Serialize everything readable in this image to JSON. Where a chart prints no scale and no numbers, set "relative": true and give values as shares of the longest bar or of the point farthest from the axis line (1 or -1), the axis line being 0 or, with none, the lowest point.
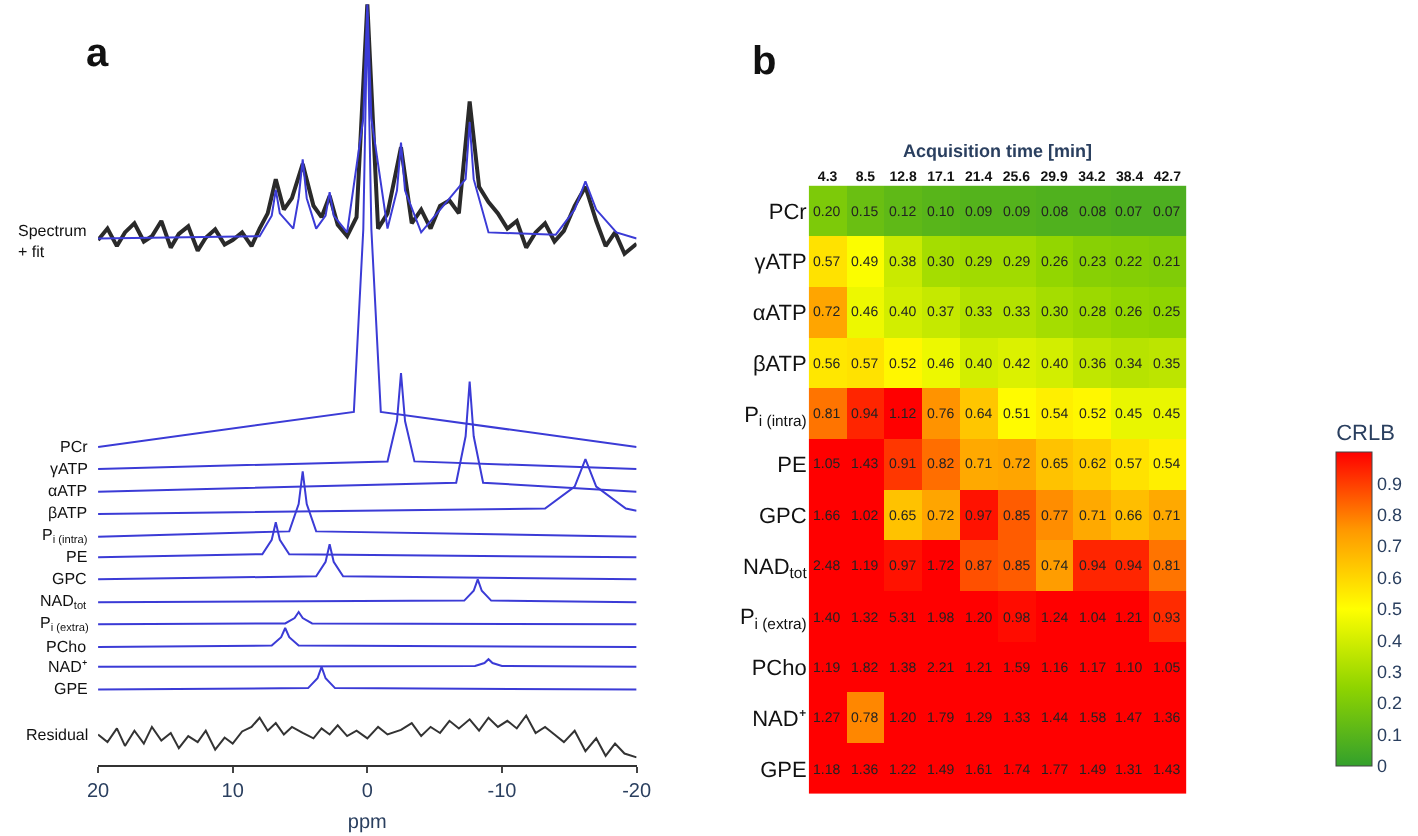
{
  "chart_data": [
    {
      "type": "line",
      "title": "a",
      "xlabel": "ppm",
      "xlim": [
        20,
        -20
      ],
      "xticks": [
        20,
        10,
        0,
        -10,
        -20
      ],
      "relative": true,
      "tick_labels": "x",
      "series": [
        {
          "name": "Spectrum + fit",
          "color": "#2a2a2a",
          "x": [
            20,
            19.3,
            18.6,
            18,
            17.3,
            16.6,
            16,
            15.3,
            14.6,
            14,
            13.3,
            12.6,
            12,
            11.3,
            10.6,
            10,
            9.3,
            8.6,
            8,
            7.4,
            6.8,
            6.2,
            5.6,
            4.8,
            4,
            3.4,
            2.8,
            2.2,
            1.5,
            0.8,
            0,
            -0.8,
            -1.5,
            -2.5,
            -3.3,
            -4,
            -4.7,
            -5.4,
            -6.1,
            -6.8,
            -7.6,
            -8.3,
            -9,
            -9.7,
            -10.4,
            -11.1,
            -11.8,
            -12.5,
            -13.2,
            -13.9,
            -14.6,
            -15.4,
            -16.2,
            -17,
            -17.7,
            -18.4,
            -19.1,
            -20
          ],
          "values": [
            0.69,
            0.705,
            0.682,
            0.7,
            0.712,
            0.688,
            0.695,
            0.715,
            0.68,
            0.698,
            0.708,
            0.676,
            0.693,
            0.704,
            0.684,
            0.69,
            0.7,
            0.682,
            0.705,
            0.725,
            0.77,
            0.73,
            0.745,
            0.79,
            0.735,
            0.72,
            0.748,
            0.71,
            0.695,
            0.72,
            1.0,
            0.705,
            0.725,
            0.812,
            0.712,
            0.73,
            0.705,
            0.735,
            0.742,
            0.725,
            0.872,
            0.76,
            0.74,
            0.725,
            0.705,
            0.715,
            0.68,
            0.7,
            0.712,
            0.688,
            0.702,
            0.735,
            0.76,
            0.715,
            0.682,
            0.7,
            0.672,
            0.685
          ]
        },
        {
          "color": "#3b3bd6",
          "x": [
            20,
            8,
            7.1,
            6.8,
            6.5,
            5.5,
            5.1,
            4.8,
            4.5,
            3.8,
            3.1,
            2.8,
            2.5,
            1.5,
            0.3,
            0,
            -0.3,
            -1.5,
            -2.2,
            -2.5,
            -2.8,
            -4,
            -7.3,
            -7.6,
            -7.9,
            -9,
            -14,
            -15.4,
            -16.2,
            -17,
            -18.5,
            -20
          ],
          "values": [
            0.692,
            0.695,
            0.722,
            0.756,
            0.725,
            0.705,
            0.745,
            0.796,
            0.745,
            0.705,
            0.722,
            0.753,
            0.722,
            0.7,
            0.85,
            1.0,
            0.85,
            0.705,
            0.755,
            0.818,
            0.755,
            0.7,
            0.77,
            0.845,
            0.77,
            0.7,
            0.697,
            0.73,
            0.767,
            0.73,
            0.7,
            0.692
          ]
        },
        {
          "name": "PCr",
          "color": "#3b3bd6",
          "x": [
            20,
            1,
            0.3,
            0,
            -0.3,
            -1,
            -20
          ],
          "values": [
            0.418,
            0.464,
            0.704,
            0.99,
            0.704,
            0.464,
            0.418
          ]
        },
        {
          "name": "γATP",
          "color": "#3b3bd6",
          "x": [
            20,
            -1.5,
            -2.2,
            -2.5,
            -2.8,
            -3.5,
            -20
          ],
          "values": [
            0.389,
            0.399,
            0.452,
            0.515,
            0.452,
            0.399,
            0.389
          ]
        },
        {
          "name": "αATP",
          "color": "#3b3bd6",
          "x": [
            20,
            -6.6,
            -7.3,
            -7.6,
            -7.9,
            -8.6,
            -20
          ],
          "values": [
            0.359,
            0.371,
            0.432,
            0.504,
            0.432,
            0.371,
            0.359
          ]
        },
        {
          "name": "βATP",
          "color": "#3b3bd6",
          "x": [
            20,
            -13.2,
            -15.4,
            -16.2,
            -17,
            -19.2,
            -20
          ],
          "values": [
            0.33,
            0.337,
            0.366,
            0.402,
            0.366,
            0.337,
            0.334
          ]
        },
        {
          "name": "P$_{i (intra)}$",
          "color": "#3b3bd6",
          "x": [
            20,
            5.8,
            5.1,
            4.8,
            4.5,
            3.8,
            -20
          ],
          "values": [
            0.3,
            0.307,
            0.343,
            0.386,
            0.343,
            0.307,
            0.3
          ]
        },
        {
          "name": "PE",
          "color": "#3b3bd6",
          "x": [
            20,
            7.8,
            7.1,
            6.8,
            6.5,
            5.8,
            -20
          ],
          "values": [
            0.273,
            0.277,
            0.296,
            0.319,
            0.296,
            0.277,
            0.273
          ]
        },
        {
          "name": "GPC",
          "color": "#3b3bd6",
          "x": [
            20,
            3.8,
            3.1,
            2.8,
            2.5,
            1.8,
            -20
          ],
          "values": [
            0.244,
            0.248,
            0.267,
            0.29,
            0.267,
            0.248,
            0.244
          ]
        },
        {
          "name": "NAD$_{tot}$",
          "color": "#3b3bd6",
          "x": [
            20,
            -7.2,
            -7.9,
            -8.2,
            -8.5,
            -9.2,
            -20
          ],
          "values": [
            0.214,
            0.216,
            0.229,
            0.244,
            0.229,
            0.216,
            0.214
          ]
        },
        {
          "name": "P$_{i (extra)}$",
          "color": "#3b3bd6",
          "x": [
            20,
            6.1,
            5.4,
            5.1,
            4.8,
            4.1,
            -20
          ],
          "values": [
            0.185,
            0.186,
            0.193,
            0.201,
            0.193,
            0.186,
            0.185
          ]
        },
        {
          "name": "PCho",
          "color": "#3b3bd6",
          "x": [
            20,
            7.1,
            6.4,
            6.1,
            5.8,
            5.1,
            -20
          ],
          "values": [
            0.155,
            0.157,
            0.168,
            0.18,
            0.168,
            0.157,
            0.155
          ]
        },
        {
          "name": "NAD⁺",
          "color": "#3b3bd6",
          "x": [
            20,
            -8,
            -8.7,
            -9,
            -9.3,
            -10,
            -20
          ],
          "values": [
            0.129,
            0.13,
            0.134,
            0.139,
            0.134,
            0.13,
            0.129
          ]
        },
        {
          "name": "GPE",
          "color": "#3b3bd6",
          "x": [
            20,
            4.4,
            3.7,
            3.4,
            3.1,
            2.4,
            -20
          ],
          "values": [
            0.099,
            0.101,
            0.114,
            0.129,
            0.114,
            0.101,
            0.099
          ]
        },
        {
          "name": "Residual",
          "color": "#333333",
          "x": [
            20,
            19.3,
            18.6,
            18,
            17.3,
            16.6,
            16,
            15.3,
            14.6,
            14,
            13.3,
            12.6,
            12,
            11.3,
            10.6,
            10,
            9.3,
            8.6,
            8,
            7.4,
            6.8,
            6.2,
            5.6,
            4.8,
            4,
            3.4,
            2.8,
            2.2,
            1.5,
            0.8,
            0,
            -0.8,
            -1.5,
            -2.5,
            -3.3,
            -4,
            -4.7,
            -5.4,
            -6.1,
            -6.8,
            -7.6,
            -8.3,
            -9,
            -9.7,
            -10.4,
            -11.1,
            -11.8,
            -12.5,
            -13.2,
            -13.9,
            -14.6,
            -15.4,
            -16.2,
            -17,
            -17.7,
            -18.4,
            -19.1,
            -20
          ],
          "values": [
            0.04,
            0.03,
            0.048,
            0.025,
            0.045,
            0.028,
            0.05,
            0.032,
            0.042,
            0.022,
            0.038,
            0.03,
            0.045,
            0.02,
            0.036,
            0.028,
            0.044,
            0.05,
            0.062,
            0.045,
            0.055,
            0.04,
            0.05,
            0.042,
            0.035,
            0.048,
            0.04,
            0.052,
            0.038,
            0.045,
            0.035,
            0.05,
            0.04,
            0.046,
            0.055,
            0.038,
            0.05,
            0.042,
            0.058,
            0.048,
            0.06,
            0.045,
            0.062,
            0.05,
            0.058,
            0.048,
            0.065,
            0.042,
            0.05,
            0.04,
            0.03,
            0.045,
            0.018,
            0.035,
            0.012,
            0.028,
            0.015,
            0.01
          ]
        }
      ]
    },
    {
      "type": "heatmap",
      "title": "b",
      "xlabel": "Acquisition time [min]",
      "clabel": "CRLB",
      "cell_labels": [
        [
          "0.20",
          "0.15",
          "0.12",
          "0.10",
          "0.09",
          "0.09",
          "0.08",
          "0.08",
          "0.07",
          "0.07"
        ],
        [
          "0.57",
          "0.49",
          "0.38",
          "0.30",
          "0.29",
          "0.29",
          "0.26",
          "0.23",
          "0.22",
          "0.21"
        ],
        [
          "0.72",
          "0.46",
          "0.40",
          "0.37",
          "0.33",
          "0.33",
          "0.30",
          "0.28",
          "0.26",
          "0.25"
        ],
        [
          "0.56",
          "0.57",
          "0.52",
          "0.46",
          "0.40",
          "0.42",
          "0.40",
          "0.36",
          "0.34",
          "0.35"
        ],
        [
          "0.81",
          "0.94",
          "1.12",
          "0.76",
          "0.64",
          "0.51",
          "0.54",
          "0.52",
          "0.45",
          "0.45"
        ],
        [
          "1.05",
          "1.43",
          "0.91",
          "0.82",
          "0.71",
          "0.72",
          "0.65",
          "0.62",
          "0.57",
          "0.54"
        ],
        [
          "1.66",
          "1.02",
          "0.65",
          "0.72",
          "0.97",
          "0.85",
          "0.77",
          "0.71",
          "0.66",
          "0.71"
        ],
        [
          "2.48",
          "1.19",
          "0.97",
          "1.72",
          "0.87",
          "0.85",
          "0.74",
          "0.94",
          "0.94",
          "0.81"
        ],
        [
          "1.40",
          "1.32",
          "5.31",
          "1.98",
          "1.20",
          "0.98",
          "1.24",
          "1.04",
          "1.21",
          "0.93"
        ],
        [
          "1.19",
          "1.82",
          "1.38",
          "2.21",
          "1.21",
          "1.59",
          "1.16",
          "1.17",
          "1.10",
          "1.05"
        ],
        [
          "1.27",
          "0.78",
          "1.20",
          "1.79",
          "1.29",
          "1.33",
          "1.44",
          "1.58",
          "1.47",
          "1.36"
        ],
        [
          "1.18",
          "1.36",
          "1.22",
          "1.49",
          "1.61",
          "1.74",
          "1.77",
          "1.49",
          "1.31",
          "1.43"
        ]
      ],
      "categories": [
        "4.3",
        "8.5",
        "12.8",
        "17.1",
        "21.4",
        "25.6",
        "29.9",
        "34.2",
        "38.4",
        "42.7"
      ],
      "y_categories": [
        "PCr",
        "γATP",
        "αATP",
        "βATP",
        "P$_{i (intra)}$",
        "PE",
        "GPC",
        "NAD$_{tot}$",
        "P$_{i (extra)}$",
        "PCho",
        "NAD⁺",
        "GPE"
      ],
      "clim": [
        0,
        1
      ],
      "cticks": [
        0,
        0.1,
        0.2,
        0.3,
        0.4,
        0.5,
        0.6,
        0.7,
        0.8,
        0.9
      ],
      "cells": [
        [
          0.2,
          0.15,
          0.12,
          0.1,
          0.09,
          0.09,
          0.08,
          0.08,
          0.07,
          0.07
        ],
        [
          0.57,
          0.49,
          0.38,
          0.3,
          0.29,
          0.29,
          0.26,
          0.23,
          0.22,
          0.21
        ],
        [
          0.72,
          0.46,
          0.4,
          0.37,
          0.33,
          0.33,
          0.3,
          0.28,
          0.26,
          0.25
        ],
        [
          0.56,
          0.57,
          0.52,
          0.46,
          0.4,
          0.42,
          0.4,
          0.36,
          0.34,
          0.35
        ],
        [
          0.81,
          0.94,
          1.12,
          0.76,
          0.64,
          0.51,
          0.54,
          0.52,
          0.45,
          0.45
        ],
        [
          1.05,
          1.43,
          0.91,
          0.82,
          0.71,
          0.72,
          0.65,
          0.62,
          0.57,
          0.54
        ],
        [
          1.66,
          1.02,
          0.65,
          0.72,
          0.97,
          0.85,
          0.77,
          0.71,
          0.66,
          0.71
        ],
        [
          2.48,
          1.19,
          0.97,
          1.72,
          0.87,
          0.85,
          0.74,
          0.94,
          0.94,
          0.81
        ],
        [
          1.4,
          1.32,
          5.31,
          1.98,
          1.2,
          0.98,
          1.24,
          1.04,
          1.21,
          0.93
        ],
        [
          1.19,
          1.82,
          1.38,
          2.21,
          1.21,
          1.59,
          1.16,
          1.17,
          1.1,
          1.05
        ],
        [
          1.27,
          0.78,
          1.2,
          1.79,
          1.29,
          1.33,
          1.44,
          1.58,
          1.47,
          1.36
        ],
        [
          1.18,
          1.36,
          1.22,
          1.49,
          1.61,
          1.74,
          1.77,
          1.49,
          1.31,
          1.43
        ]
      ]
    }
  ]
}
